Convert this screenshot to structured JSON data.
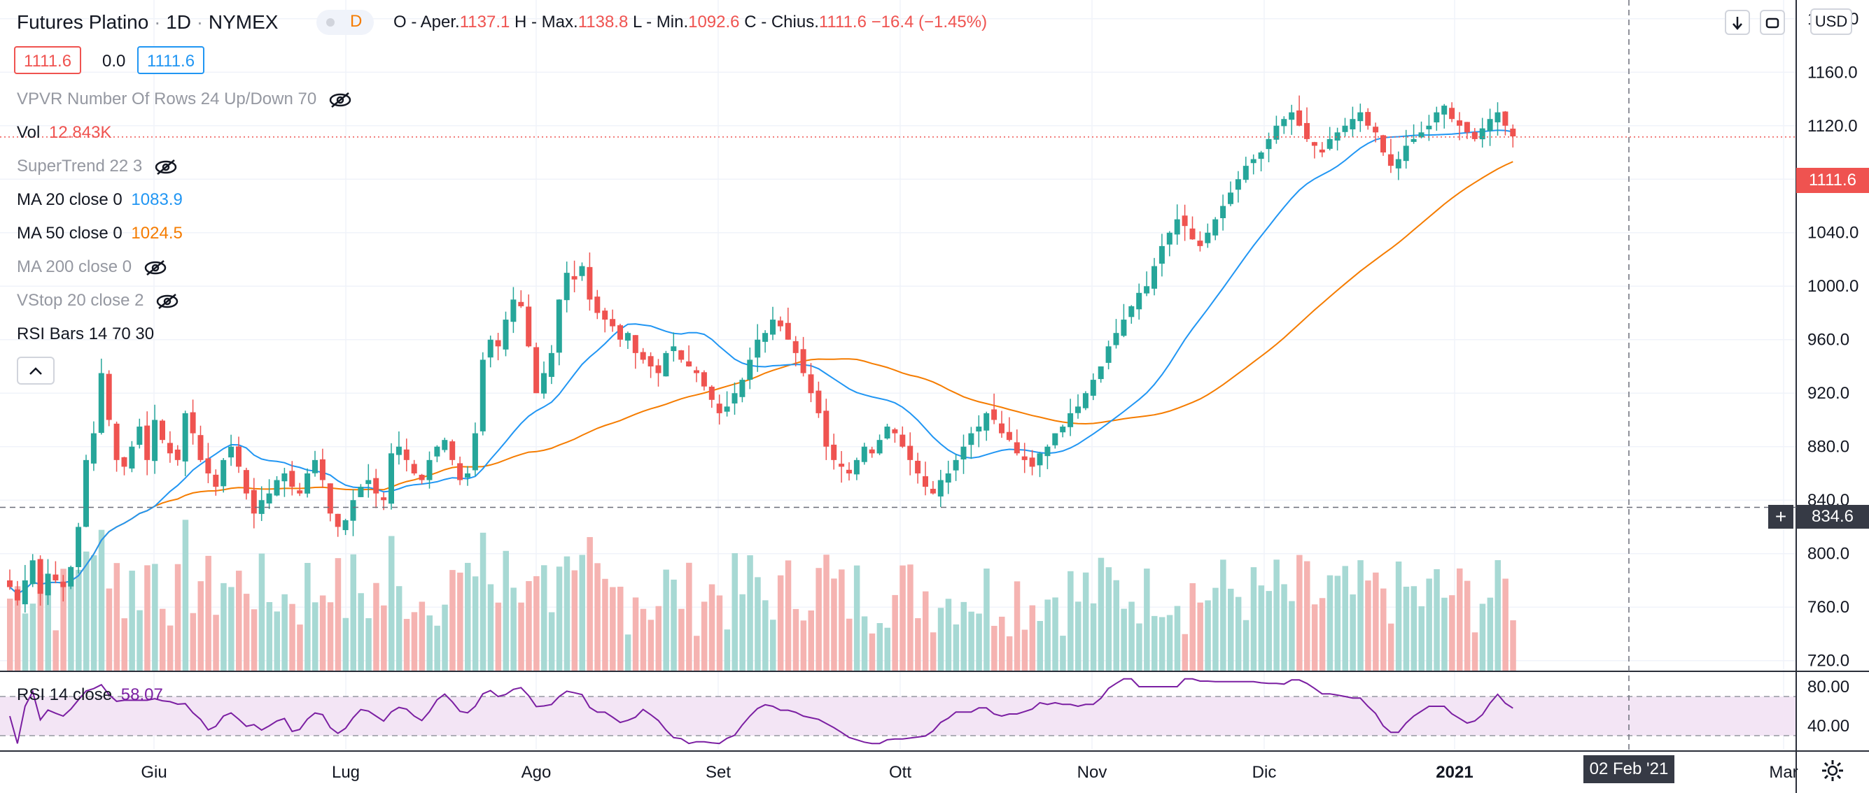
{
  "header": {
    "symbol": "Futures Platino",
    "sep1": "·",
    "interval": "1D",
    "sep2": "·",
    "exchange": "NYMEX",
    "badge": "D",
    "ohlc": {
      "o_label": "O - Aper.",
      "o_value": "1137.1",
      "h_label": "H - Max.",
      "h_value": "1138.8",
      "l_label": "L - Min.",
      "l_value": "1092.6",
      "c_label": "C - Chius.",
      "c_value": "1111.6",
      "change": "−16.4 (−1.45%)"
    },
    "bid": "1111.6",
    "spread": "0.0",
    "ask": "1111.6",
    "currency": "USD"
  },
  "legend": {
    "vpvr": "VPVR Number Of Rows 24 Up/Down 70",
    "vol_label": "Vol",
    "vol_value": "12.843K",
    "supertrend": "SuperTrend 22 3",
    "ma20_label": "MA 20 close 0",
    "ma20_value": "1083.9",
    "ma50_label": "MA 50 close 0",
    "ma50_value": "1024.5",
    "ma200": "MA 200 close 0",
    "vstop": "VStop 20 close 2",
    "rsi_bars": "RSI Bars 14 70 30"
  },
  "rsi_legend": {
    "label": "RSI 14 close",
    "value": "58.07"
  },
  "crosshair": {
    "price": "834.6",
    "date": "02 Feb '21"
  },
  "last_price_tag": "1111.6",
  "colors": {
    "up": "#26a69a",
    "down": "#ef5350",
    "ma20": "#2196f3",
    "ma50": "#f57c00",
    "rsi": "#7b1fa2",
    "rsi_fill": "#f3e5f5",
    "vol_up": "#a7d9d4",
    "vol_down": "#f5b3b1"
  },
  "icons": [
    "eye-hidden-icon",
    "arrow-down-icon",
    "expand-icon",
    "chevron-up-icon",
    "gear-icon",
    "plus-icon"
  ],
  "chart_data": {
    "type": "candlestick",
    "y_ticks": [
      "1200.0",
      "1160.0",
      "1120.0",
      "1080.0",
      "1040.0",
      "1000.0",
      "960.0",
      "920.0",
      "880.0",
      "840.0",
      "800.0",
      "760.0",
      "720.0"
    ],
    "ylim": [
      712,
      1214
    ],
    "x_ticks": [
      "Giu",
      "Lug",
      "Ago",
      "Set",
      "Ott",
      "Nov",
      "Dic",
      "2021",
      "Mar"
    ],
    "rsi_ticks": [
      "80.00",
      "40.00"
    ],
    "rsi_bands": [
      70,
      30
    ],
    "last_close": 1111.6,
    "rsi_last": 58.07,
    "ma20_last": 1083.9,
    "ma50_last": 1024.5,
    "closes": [
      775,
      765,
      780,
      795,
      770,
      785,
      780,
      775,
      790,
      820,
      870,
      890,
      935,
      900,
      870,
      865,
      880,
      895,
      870,
      900,
      885,
      875,
      870,
      905,
      890,
      870,
      860,
      850,
      870,
      880,
      865,
      845,
      830,
      840,
      845,
      855,
      860,
      850,
      845,
      860,
      870,
      855,
      830,
      820,
      825,
      840,
      850,
      855,
      845,
      840,
      875,
      880,
      870,
      860,
      855,
      870,
      880,
      885,
      870,
      855,
      860,
      890,
      945,
      960,
      955,
      975,
      990,
      985,
      955,
      920,
      935,
      950,
      990,
      1010,
      1005,
      1015,
      990,
      980,
      975,
      970,
      960,
      965,
      950,
      945,
      940,
      935,
      950,
      955,
      945,
      940,
      935,
      925,
      915,
      905,
      910,
      920,
      930,
      945,
      960,
      965,
      975,
      970,
      960,
      950,
      935,
      920,
      905,
      880,
      870,
      865,
      860,
      870,
      880,
      875,
      885,
      895,
      890,
      880,
      870,
      860,
      850,
      845,
      855,
      860,
      870,
      880,
      890,
      895,
      905,
      900,
      890,
      885,
      875,
      870,
      865,
      875,
      880,
      890,
      895,
      905,
      910,
      920,
      930,
      940,
      955,
      965,
      975,
      985,
      995,
      1000,
      1015,
      1030,
      1040,
      1050,
      1045,
      1035,
      1030,
      1040,
      1050,
      1060,
      1070,
      1080,
      1090,
      1095,
      1100,
      1110,
      1120,
      1125,
      1130,
      1120,
      1110,
      1105,
      1100,
      1110,
      1115,
      1120,
      1125,
      1130,
      1120,
      1115,
      1100,
      1090,
      1095,
      1105,
      1110,
      1115,
      1120,
      1130,
      1135,
      1125,
      1120,
      1115,
      1110,
      1118,
      1125,
      1130,
      1120,
      1112
    ]
  }
}
